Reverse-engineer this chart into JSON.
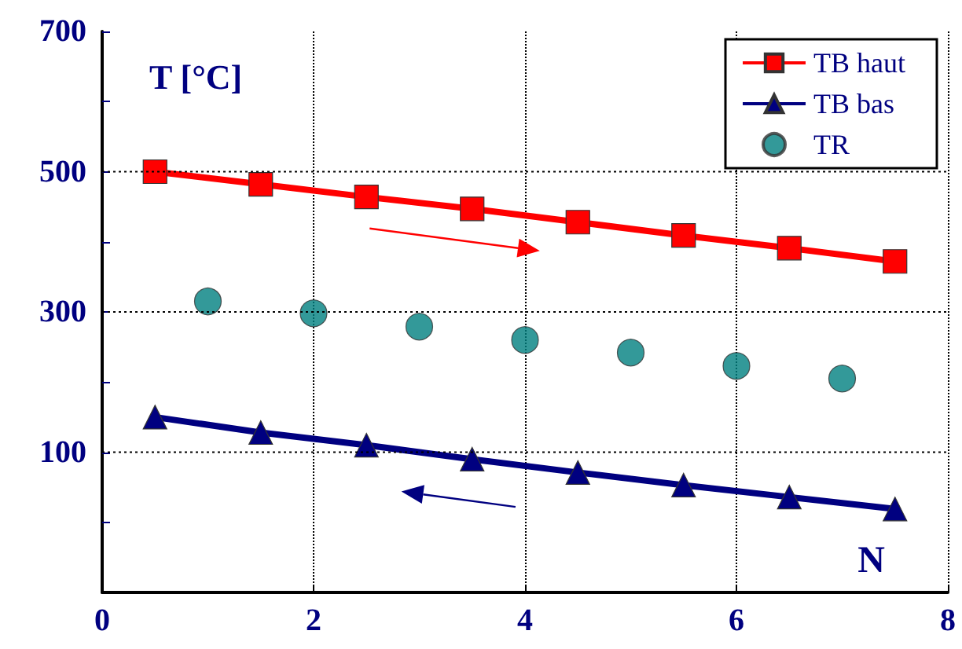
{
  "chart_data": {
    "type": "line",
    "xlabel": "N",
    "ylabel": "T [°C]",
    "xlim": [
      0,
      8
    ],
    "xticks": [
      0,
      2,
      4,
      6,
      8
    ],
    "ylim": [
      -100,
      700
    ],
    "yticks": [
      {
        "value": 0,
        "label": null
      },
      100,
      {
        "value": 200,
        "label": null
      },
      300,
      {
        "value": 400,
        "label": null
      },
      500,
      {
        "value": 600,
        "label": null
      },
      700
    ],
    "grid": true,
    "legend": "top right",
    "line_style": "solid",
    "series": [
      {
        "name": "TB haut",
        "color": "#ff0000",
        "marker": "square",
        "x": [
          0.5,
          1.5,
          2.5,
          3.5,
          4.5,
          5.5,
          6.5,
          7.5
        ],
        "values": [
          500,
          482,
          464,
          447,
          428,
          409,
          391,
          372
        ]
      },
      {
        "name": "TB bas",
        "color": "#000080",
        "marker": "triangle",
        "x": [
          0.5,
          1.5,
          2.5,
          3.5,
          4.5,
          5.5,
          6.5,
          7.5
        ],
        "values": [
          150,
          128,
          110,
          90,
          71,
          53,
          36,
          19
        ]
      },
      {
        "name": "TR",
        "type": "scatter",
        "color": "#008080",
        "marker": "circle",
        "x": [
          1,
          2,
          3,
          4,
          5,
          6,
          7
        ],
        "values": [
          315,
          298,
          279,
          260,
          242,
          223,
          205
        ]
      }
    ]
  }
}
